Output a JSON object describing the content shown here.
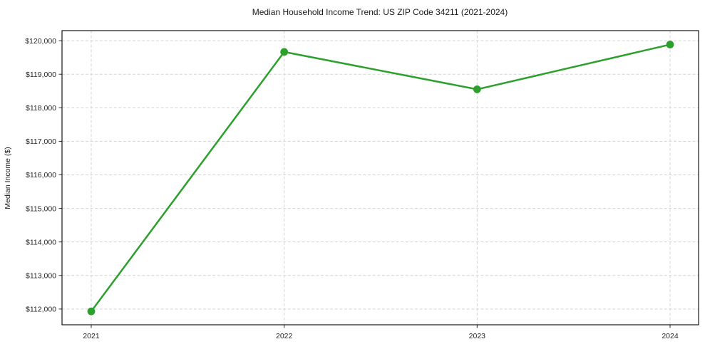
{
  "chart_data": {
    "type": "line",
    "title": "Median Household Income Trend: US ZIP Code 34211 (2021-2024)",
    "xlabel": "",
    "ylabel": "Median Income ($)",
    "categories": [
      "2021",
      "2022",
      "2023",
      "2024"
    ],
    "series": [
      {
        "name": "Median Household Income",
        "values": [
          111930,
          119665,
          118550,
          119885
        ],
        "color": "#2ca02c"
      }
    ],
    "ylim": [
      111530,
      120300
    ],
    "yticks": [
      112000,
      113000,
      114000,
      115000,
      116000,
      117000,
      118000,
      119000,
      120000
    ],
    "ytick_labels": [
      "$112,000",
      "$113,000",
      "$114,000",
      "$115,000",
      "$116,000",
      "$117,000",
      "$118,000",
      "$119,000",
      "$120,000"
    ],
    "grid": true,
    "legend": false,
    "styles": {
      "line_color": "#2ca02c",
      "marker_color": "#2ca02c",
      "grid_color": "#d4d4d4",
      "axis_color": "#000000",
      "tick_color": "#333333",
      "text_color": "#1a1a1a",
      "background": "#ffffff"
    }
  }
}
